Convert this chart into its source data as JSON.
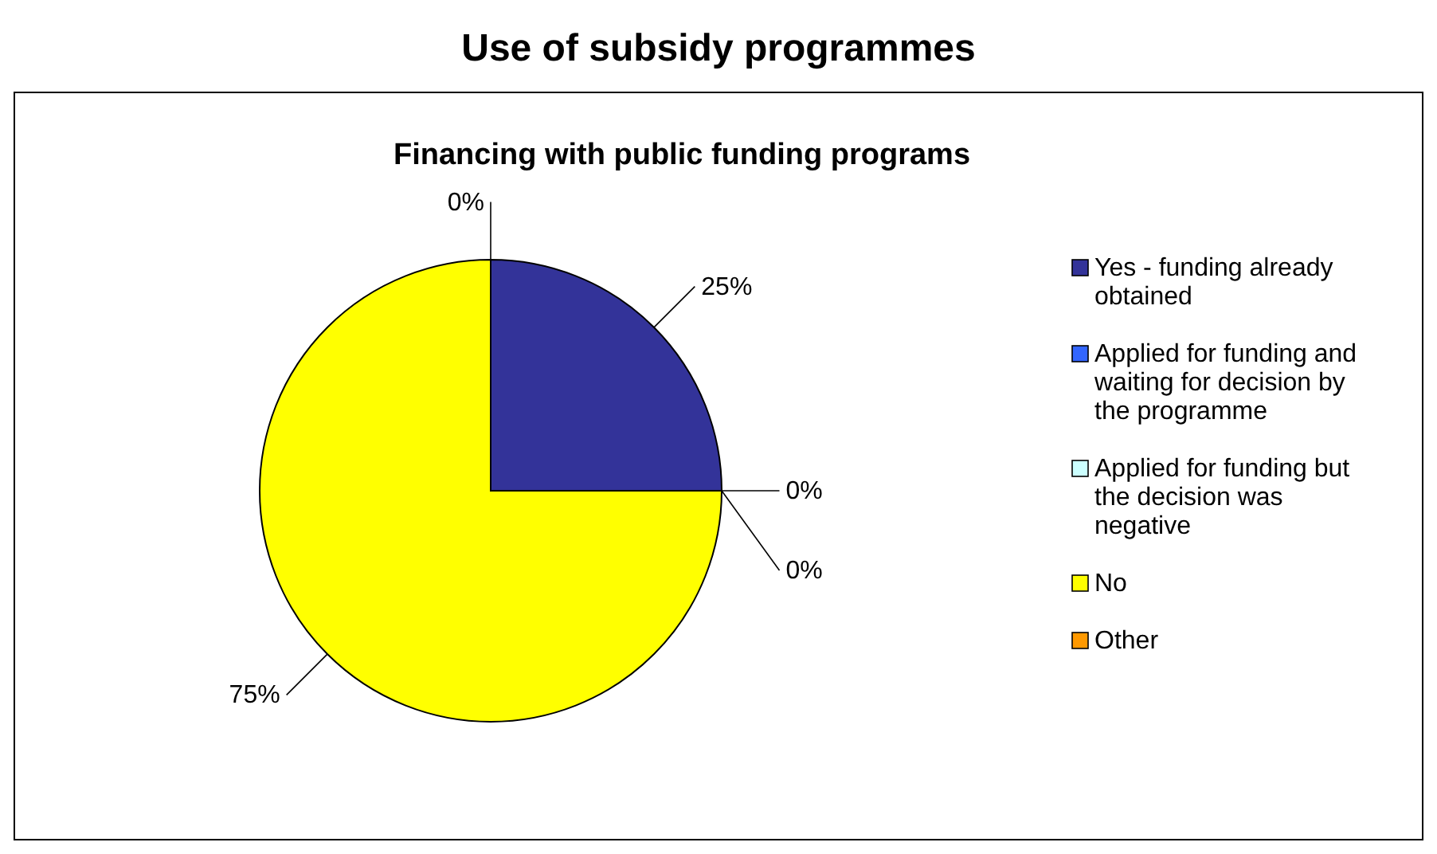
{
  "chart_data": {
    "type": "pie",
    "title": "Use of subsidy programmes",
    "subtitle": "Financing with public funding programs",
    "categories": [
      "Yes - funding already obtained",
      "Applied for funding and waiting for decision by the programme",
      "Applied for funding but the decision was negative",
      "No",
      "Other"
    ],
    "values": [
      25,
      0,
      0,
      75,
      0
    ],
    "colors": [
      "#333399",
      "#3366ff",
      "#ccffff",
      "#ffff00",
      "#ff9900"
    ],
    "value_labels": [
      "25%",
      "0%",
      "0%",
      "75%",
      "0%"
    ],
    "legend": "right"
  }
}
